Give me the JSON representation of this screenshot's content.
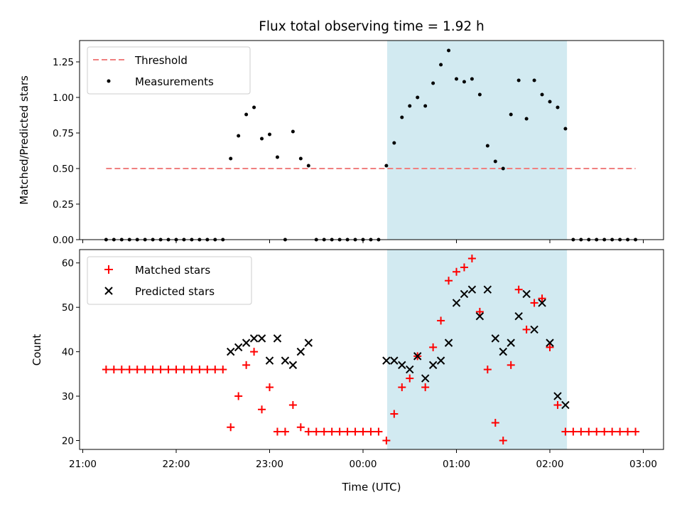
{
  "chart_data": {
    "title": "Flux total observing time = 1.92 h",
    "xlabel": "Time (UTC)",
    "xticks": [
      "21:00",
      "22:00",
      "23:00",
      "00:00",
      "01:00",
      "02:00",
      "03:00"
    ],
    "highlight_span": [
      "00:15:30",
      "02:11:00"
    ],
    "highlight_color": "#add8e6",
    "panels": [
      {
        "type": "scatter",
        "ylabel": "Matched/Predicted stars",
        "ylim": [
          0,
          1.4
        ],
        "yticks": [
          "0.00",
          "0.25",
          "0.50",
          "0.75",
          "1.00",
          "1.25"
        ],
        "legend_position": "top-left",
        "series": [
          {
            "name": "Threshold",
            "kind": "dashed-line",
            "color": "#f08080",
            "x": [
              "21:15",
              "02:55"
            ],
            "y": [
              0.5,
              0.5
            ]
          },
          {
            "name": "Measurements",
            "kind": "dot",
            "color": "#000000",
            "x": [
              "21:15",
              "21:20",
              "21:25",
              "21:30",
              "21:35",
              "21:40",
              "21:45",
              "21:50",
              "21:55",
              "22:00",
              "22:05",
              "22:10",
              "22:15",
              "22:20",
              "22:25",
              "22:30",
              "22:35",
              "22:40",
              "22:45",
              "22:50",
              "22:55",
              "23:00",
              "23:05",
              "23:10",
              "23:15",
              "23:20",
              "23:25",
              "23:30",
              "23:35",
              "23:40",
              "23:45",
              "23:50",
              "23:55",
              "00:00",
              "00:05",
              "00:10",
              "00:15",
              "00:20",
              "00:25",
              "00:30",
              "00:35",
              "00:40",
              "00:45",
              "00:50",
              "00:55",
              "01:00",
              "01:05",
              "01:10",
              "01:15",
              "01:20",
              "01:25",
              "01:30",
              "01:35",
              "01:40",
              "01:45",
              "01:50",
              "01:55",
              "02:00",
              "02:05",
              "02:10",
              "02:15",
              "02:20",
              "02:25",
              "02:30",
              "02:35",
              "02:40",
              "02:45",
              "02:50",
              "02:55"
            ],
            "y": [
              0,
              0,
              0,
              0,
              0,
              0,
              0,
              0,
              0,
              0,
              0,
              0,
              0,
              0,
              0,
              0,
              0.57,
              0.73,
              0.88,
              0.93,
              0.71,
              0.74,
              0.58,
              0,
              0.76,
              0.57,
              0.52,
              0,
              0,
              0,
              0,
              0,
              0,
              0,
              0,
              0,
              0.52,
              0.68,
              0.86,
              0.94,
              1.0,
              0.94,
              1.1,
              1.23,
              1.33,
              1.13,
              1.11,
              1.13,
              1.02,
              0.66,
              0.55,
              0.5,
              0.88,
              1.12,
              0.85,
              1.12,
              1.02,
              0.97,
              0.93,
              0.78,
              0,
              0,
              0,
              0,
              0,
              0,
              0,
              0,
              0
            ]
          }
        ]
      },
      {
        "type": "scatter",
        "ylabel": "Count",
        "ylim": [
          18,
          63
        ],
        "yticks": [
          "20",
          "30",
          "40",
          "50",
          "60"
        ],
        "legend_position": "top-left",
        "series": [
          {
            "name": "Matched stars",
            "kind": "plus",
            "color": "#ff0000",
            "x": [
              "21:15",
              "21:20",
              "21:25",
              "21:30",
              "21:35",
              "21:40",
              "21:45",
              "21:50",
              "21:55",
              "22:00",
              "22:05",
              "22:10",
              "22:15",
              "22:20",
              "22:25",
              "22:30",
              "22:35",
              "22:40",
              "22:45",
              "22:50",
              "22:55",
              "23:00",
              "23:05",
              "23:10",
              "23:15",
              "23:20",
              "23:25",
              "23:30",
              "23:35",
              "23:40",
              "23:45",
              "23:50",
              "23:55",
              "00:00",
              "00:05",
              "00:10",
              "00:15",
              "00:20",
              "00:25",
              "00:30",
              "00:35",
              "00:40",
              "00:45",
              "00:50",
              "00:55",
              "01:00",
              "01:05",
              "01:10",
              "01:15",
              "01:20",
              "01:25",
              "01:30",
              "01:35",
              "01:40",
              "01:45",
              "01:50",
              "01:55",
              "02:00",
              "02:05",
              "02:10",
              "02:15",
              "02:20",
              "02:25",
              "02:30",
              "02:35",
              "02:40",
              "02:45",
              "02:50",
              "02:55"
            ],
            "y": [
              36,
              36,
              36,
              36,
              36,
              36,
              36,
              36,
              36,
              36,
              36,
              36,
              36,
              36,
              36,
              36,
              23,
              30,
              37,
              40,
              27,
              32,
              22,
              22,
              28,
              23,
              22,
              22,
              22,
              22,
              22,
              22,
              22,
              22,
              22,
              22,
              20,
              26,
              32,
              34,
              39,
              32,
              41,
              47,
              56,
              58,
              59,
              61,
              49,
              36,
              24,
              20,
              37,
              54,
              45,
              51,
              52,
              41,
              28,
              22,
              22,
              22,
              22,
              22,
              22,
              22,
              22,
              22,
              22
            ]
          },
          {
            "name": "Predicted stars",
            "kind": "x",
            "color": "#000000",
            "x": [
              "22:35",
              "22:40",
              "22:45",
              "22:50",
              "22:55",
              "23:00",
              "23:05",
              "23:10",
              "23:15",
              "23:20",
              "23:25",
              "23:30",
              "00:15",
              "00:20",
              "00:25",
              "00:30",
              "00:35",
              "00:40",
              "00:45",
              "00:50",
              "00:55",
              "01:00",
              "01:05",
              "01:10",
              "01:15",
              "01:20",
              "01:25",
              "01:30",
              "01:35",
              "01:40",
              "01:45",
              "01:50",
              "01:55",
              "02:00",
              "02:05",
              "02:10"
            ],
            "y": [
              40,
              41,
              42,
              43,
              43,
              38,
              43,
              38,
              37,
              40,
              42,
              null,
              38,
              38,
              37,
              36,
              39,
              34,
              37,
              38,
              42,
              51,
              53,
              54,
              48,
              54,
              43,
              40,
              42,
              48,
              53,
              45,
              51,
              42,
              30,
              28
            ]
          }
        ]
      }
    ]
  }
}
